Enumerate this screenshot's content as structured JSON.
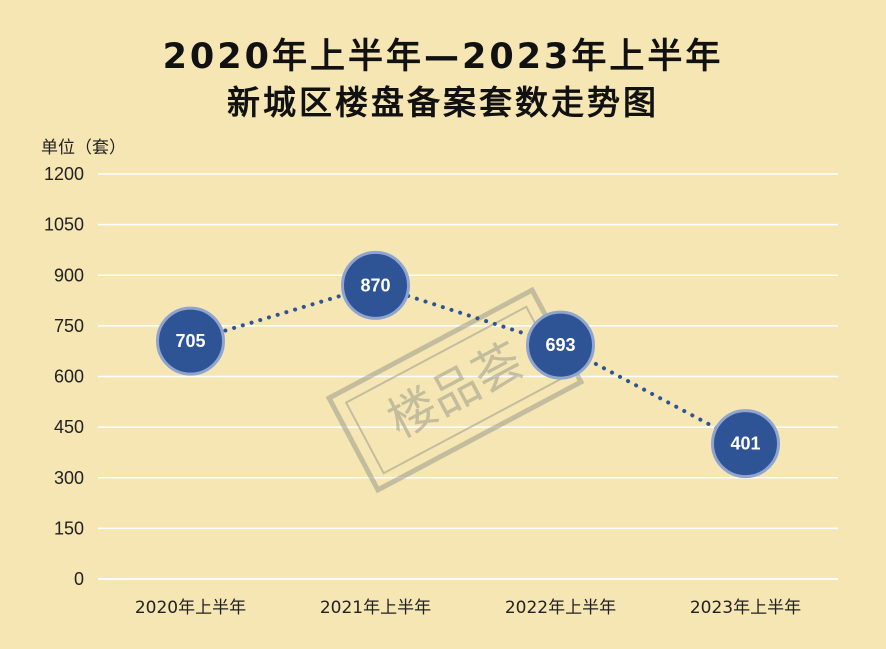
{
  "title_line1": "2020年上半年—2023年上半年",
  "title_line2": "新城区楼盘备案套数走势图",
  "unit_label": "单位（套）",
  "watermark_text": "楼品荟",
  "colors": {
    "background": "#f5e6b4",
    "grid": "#ffffff",
    "marker_fill": "#2f5496",
    "marker_stroke": "#8fa5cf",
    "line": "#2f5496",
    "watermark": "#9c9c8c"
  },
  "chart_data": {
    "type": "line",
    "categories": [
      "2020年上半年",
      "2021年上半年",
      "2022年上半年",
      "2023年上半年"
    ],
    "values": [
      705,
      870,
      693,
      401
    ],
    "data_labels": [
      "705",
      "870",
      "693",
      "401"
    ],
    "yticks": [
      "0",
      "150",
      "300",
      "450",
      "600",
      "750",
      "900",
      "1050",
      "1200"
    ],
    "ylim": [
      0,
      1200
    ],
    "line_style": "dotted",
    "marker": "circle",
    "grid": true,
    "legend": "none"
  }
}
